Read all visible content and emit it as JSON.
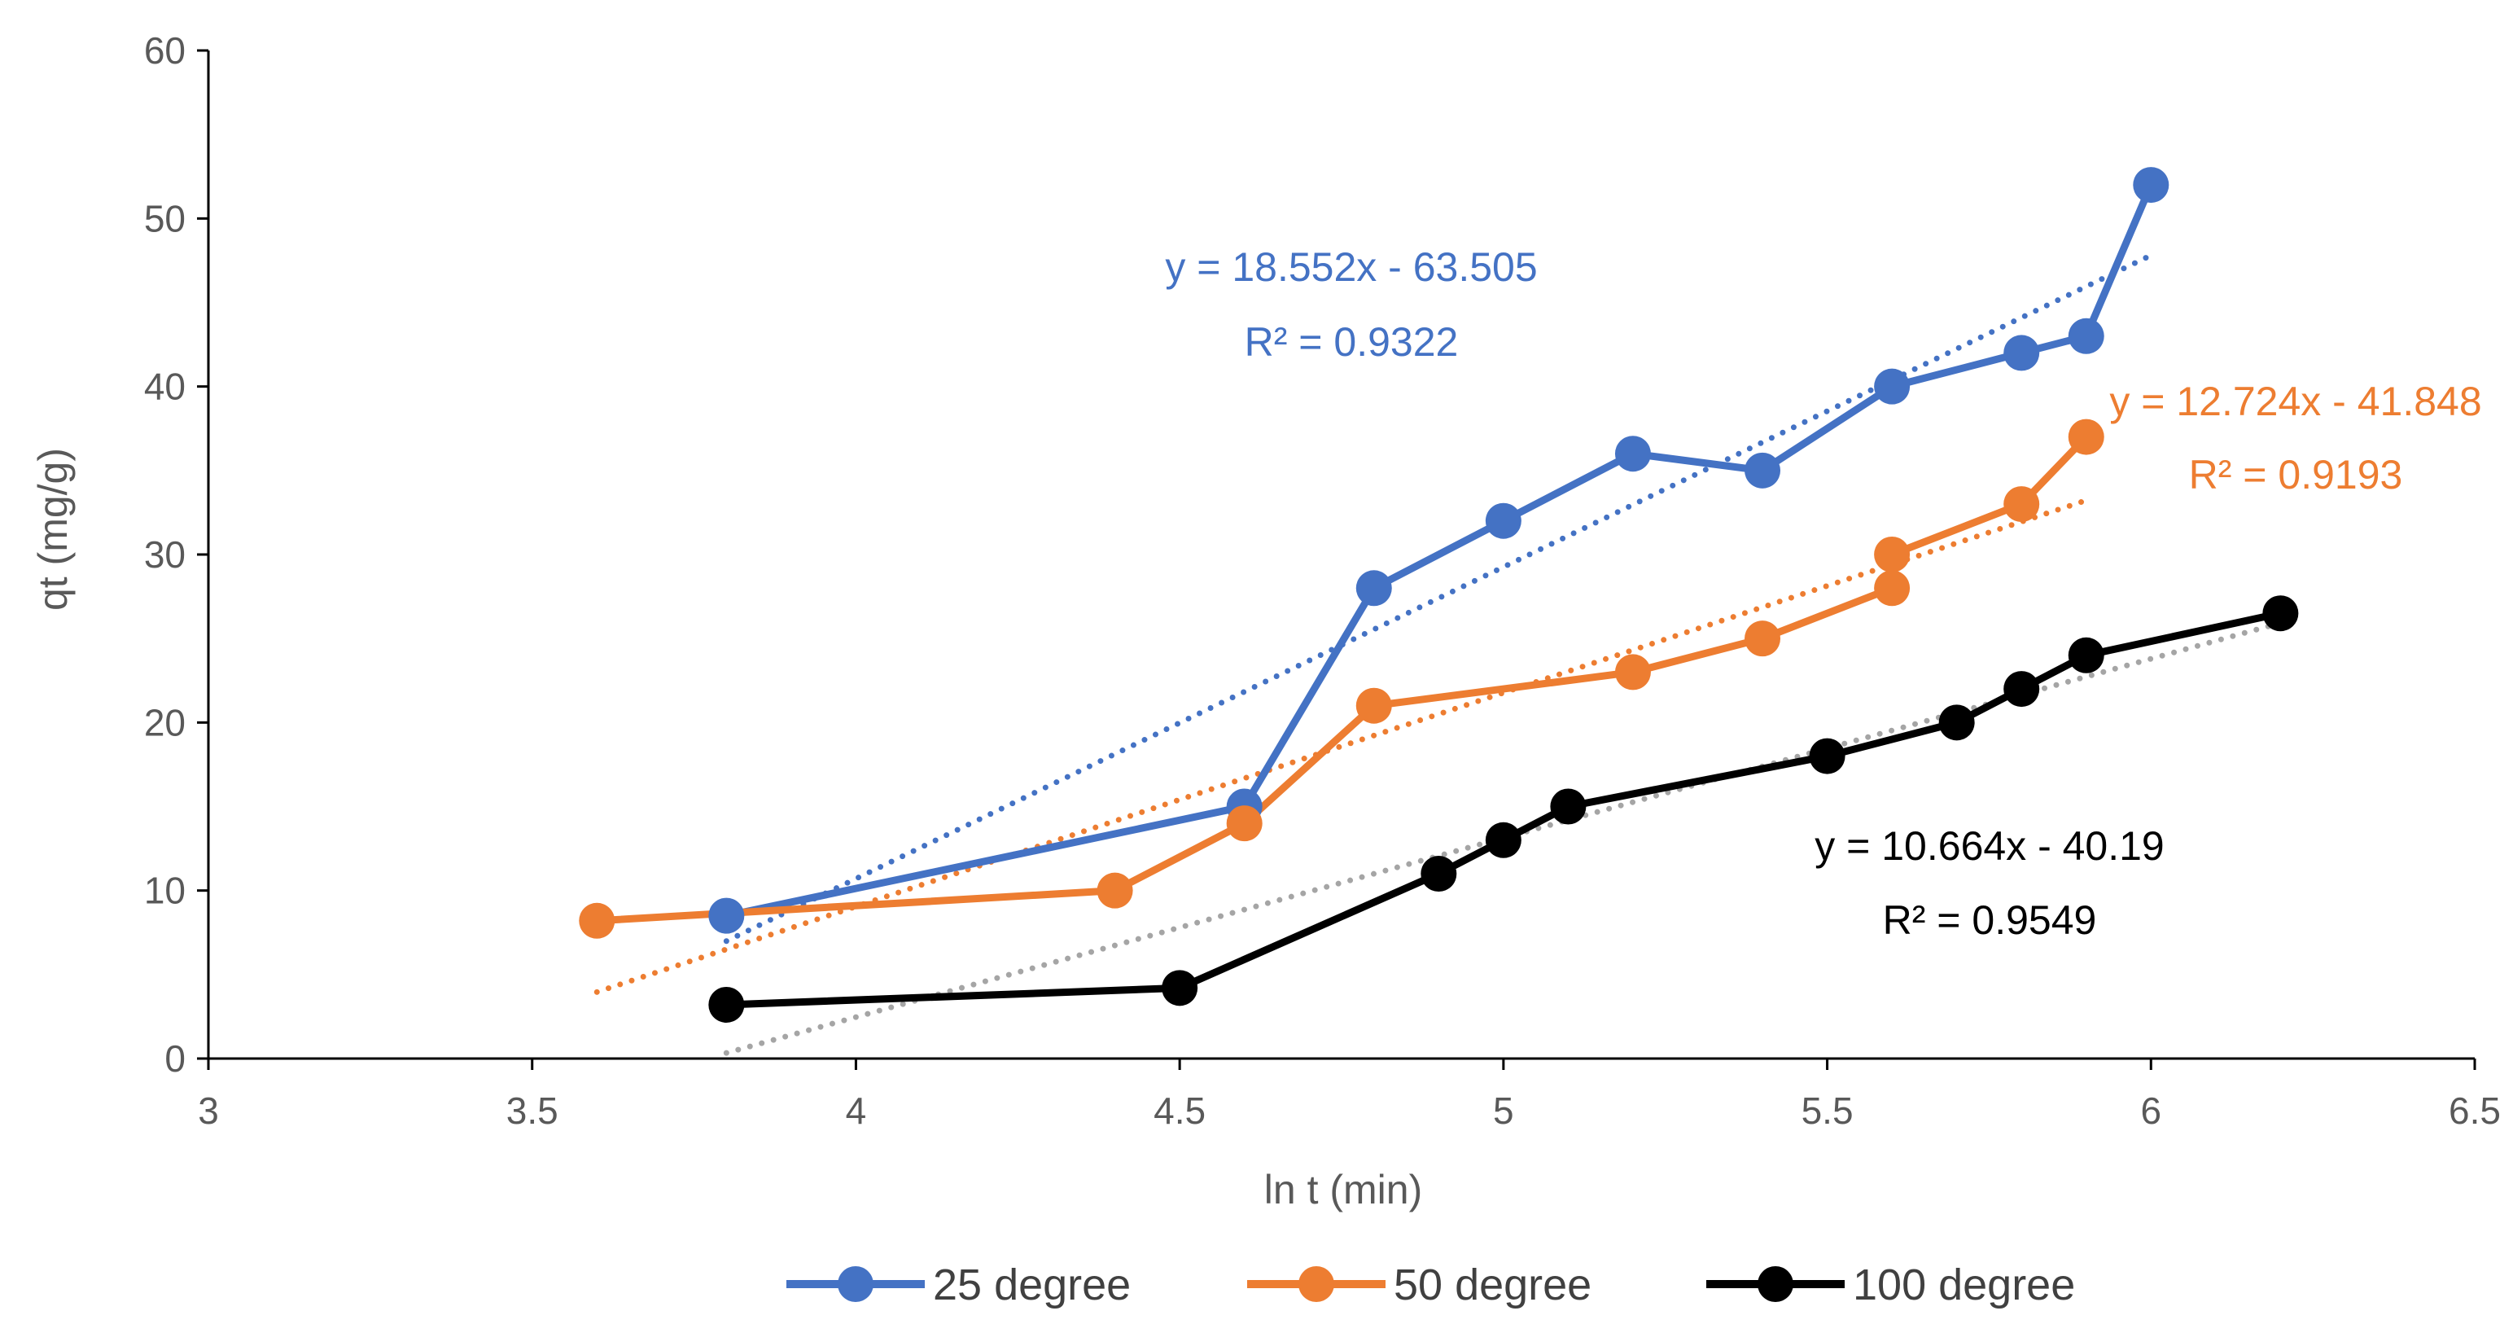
{
  "chart_data": {
    "type": "scatter",
    "xlabel": "ln t (min)",
    "ylabel": "qt (mg/g)",
    "xlim": [
      3,
      6.5
    ],
    "ylim": [
      0,
      60
    ],
    "xticks": [
      "3",
      "3.5",
      "4",
      "4.5",
      "5",
      "5.5",
      "6",
      "6.5"
    ],
    "yticks": [
      "0",
      "10",
      "20",
      "30",
      "40",
      "50",
      "60"
    ],
    "grid": false,
    "legend_position": "bottom",
    "series": [
      {
        "name": "25 degree",
        "color": "#4472C4",
        "x": [
          3.8,
          4.6,
          4.8,
          5.0,
          5.2,
          5.4,
          5.6,
          5.8,
          5.9,
          6.0
        ],
        "y": [
          8.5,
          15,
          28,
          32,
          36,
          35,
          40,
          42,
          43,
          52
        ],
        "trendline": {
          "slope": 18.552,
          "intercept": -63.505,
          "x_range": [
            3.8,
            6.0
          ],
          "color": "#4472C4"
        },
        "equation": "y = 18.552x - 63.505",
        "r2": "R² = 0.9322"
      },
      {
        "name": "50 degree",
        "color": "#ED7D31",
        "x": [
          3.6,
          4.4,
          4.6,
          4.8,
          5.2,
          5.4,
          5.6,
          5.6,
          5.8,
          5.9
        ],
        "y": [
          8.2,
          10,
          14,
          21,
          23,
          25,
          28,
          30,
          33,
          37
        ],
        "trendline": {
          "slope": 12.724,
          "intercept": -41.848,
          "x_range": [
            3.6,
            5.9
          ],
          "color": "#ED7D31"
        },
        "equation": "y = 12.724x - 41.848",
        "r2": "R² = 0.9193"
      },
      {
        "name": "100 degree",
        "color": "#000000",
        "x": [
          3.8,
          4.5,
          4.9,
          5.0,
          5.1,
          5.5,
          5.7,
          5.8,
          5.9,
          6.2
        ],
        "y": [
          3.2,
          4.2,
          11,
          13,
          15,
          18,
          20,
          22,
          24,
          26.5
        ],
        "trendline": {
          "slope": 10.664,
          "intercept": -40.19,
          "x_range": [
            3.8,
            6.2
          ],
          "color": "#A5A5A5"
        },
        "equation": "y = 10.664x - 40.19",
        "r2": "R² = 0.9549"
      }
    ]
  }
}
